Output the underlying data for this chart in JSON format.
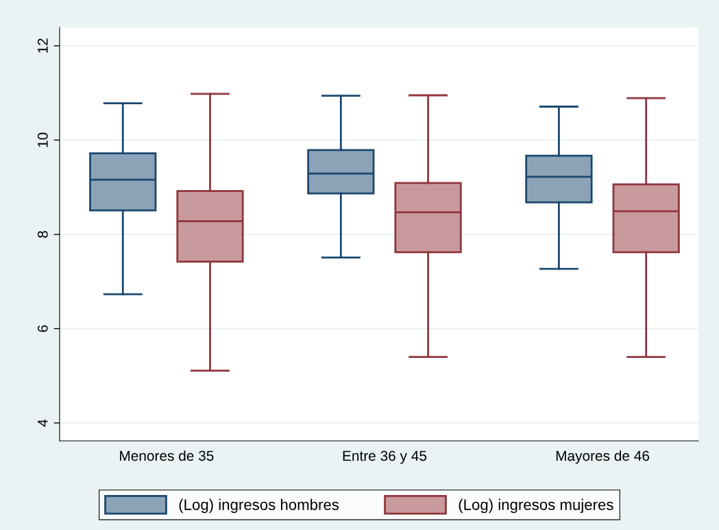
{
  "chart_data": {
    "type": "box",
    "categories": [
      "Menores de 35",
      "Entre 36 y 45",
      "Mayores de 46"
    ],
    "series": [
      {
        "name": "(Log) ingresos hombres",
        "color": "#1a476f",
        "boxes": [
          {
            "low": 6.73,
            "q1": 8.51,
            "median": 9.16,
            "q3": 9.72,
            "high": 10.78
          },
          {
            "low": 7.51,
            "q1": 8.87,
            "median": 9.29,
            "q3": 9.79,
            "high": 10.94
          },
          {
            "low": 7.27,
            "q1": 8.68,
            "median": 9.22,
            "q3": 9.67,
            "high": 10.71
          }
        ]
      },
      {
        "name": "(Log) ingresos mujeres",
        "color": "#90353b",
        "boxes": [
          {
            "low": 5.11,
            "q1": 7.42,
            "median": 8.28,
            "q3": 8.92,
            "high": 10.98
          },
          {
            "low": 5.4,
            "q1": 7.62,
            "median": 8.47,
            "q3": 9.09,
            "high": 10.95
          },
          {
            "low": 5.4,
            "q1": 7.62,
            "median": 8.49,
            "q3": 9.06,
            "high": 10.89
          }
        ]
      }
    ],
    "ylim": [
      3.62,
      12.39
    ],
    "yticks": [
      4,
      6,
      8,
      10,
      12
    ],
    "grid": "y",
    "legend": "bottom"
  }
}
